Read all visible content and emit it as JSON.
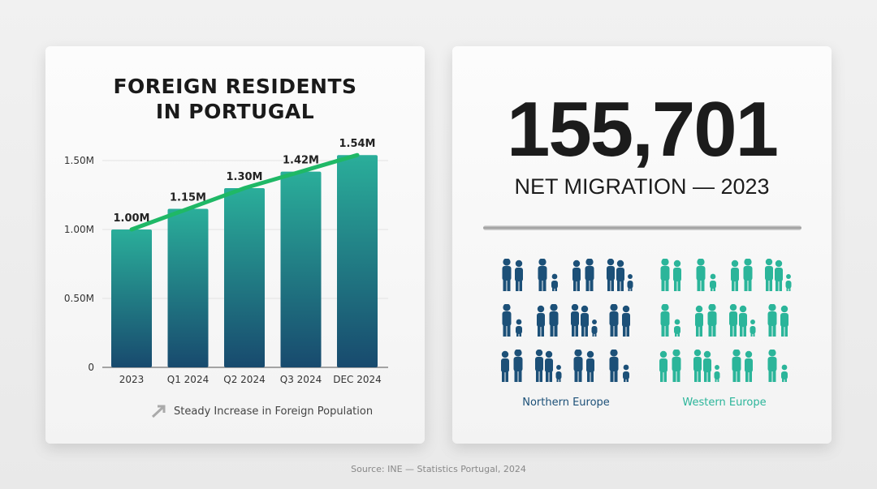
{
  "left_card": {
    "title_line1": "FOREIGN RESIDENTS",
    "title_line2": "IN PORTUGAL",
    "note": "Steady Increase in Foreign Population"
  },
  "right_card": {
    "big_number": "155,701",
    "subtitle": "NET MIGRATION — 2023",
    "groups": [
      {
        "label": "Northern Europe",
        "color": "#1c5078"
      },
      {
        "label": "Western Europe",
        "color": "#2bb59a"
      }
    ]
  },
  "source": "Source: INE — Statistics Portugal, 2024",
  "colors": {
    "bar_top": "#2aae9a",
    "bar_bottom": "#184a6e",
    "trend": "#1fb866"
  },
  "chart_data": {
    "type": "bar",
    "categories": [
      "2023",
      "Q1 2024",
      "Q2 2024",
      "Q3 2024",
      "DEC 2024"
    ],
    "values": [
      1.0,
      1.15,
      1.3,
      1.42,
      1.54
    ],
    "data_labels": [
      "1.00M",
      "1.15M",
      "1.30M",
      "1.42M",
      "1.54M"
    ],
    "unit": "M",
    "yticks": [
      0,
      0.5,
      1.0,
      1.5
    ],
    "ytick_labels": [
      "0",
      "0.50M",
      "1.00M",
      "1.50M"
    ],
    "ylim": [
      0,
      1.6
    ],
    "grid": true,
    "trend_line": true
  }
}
